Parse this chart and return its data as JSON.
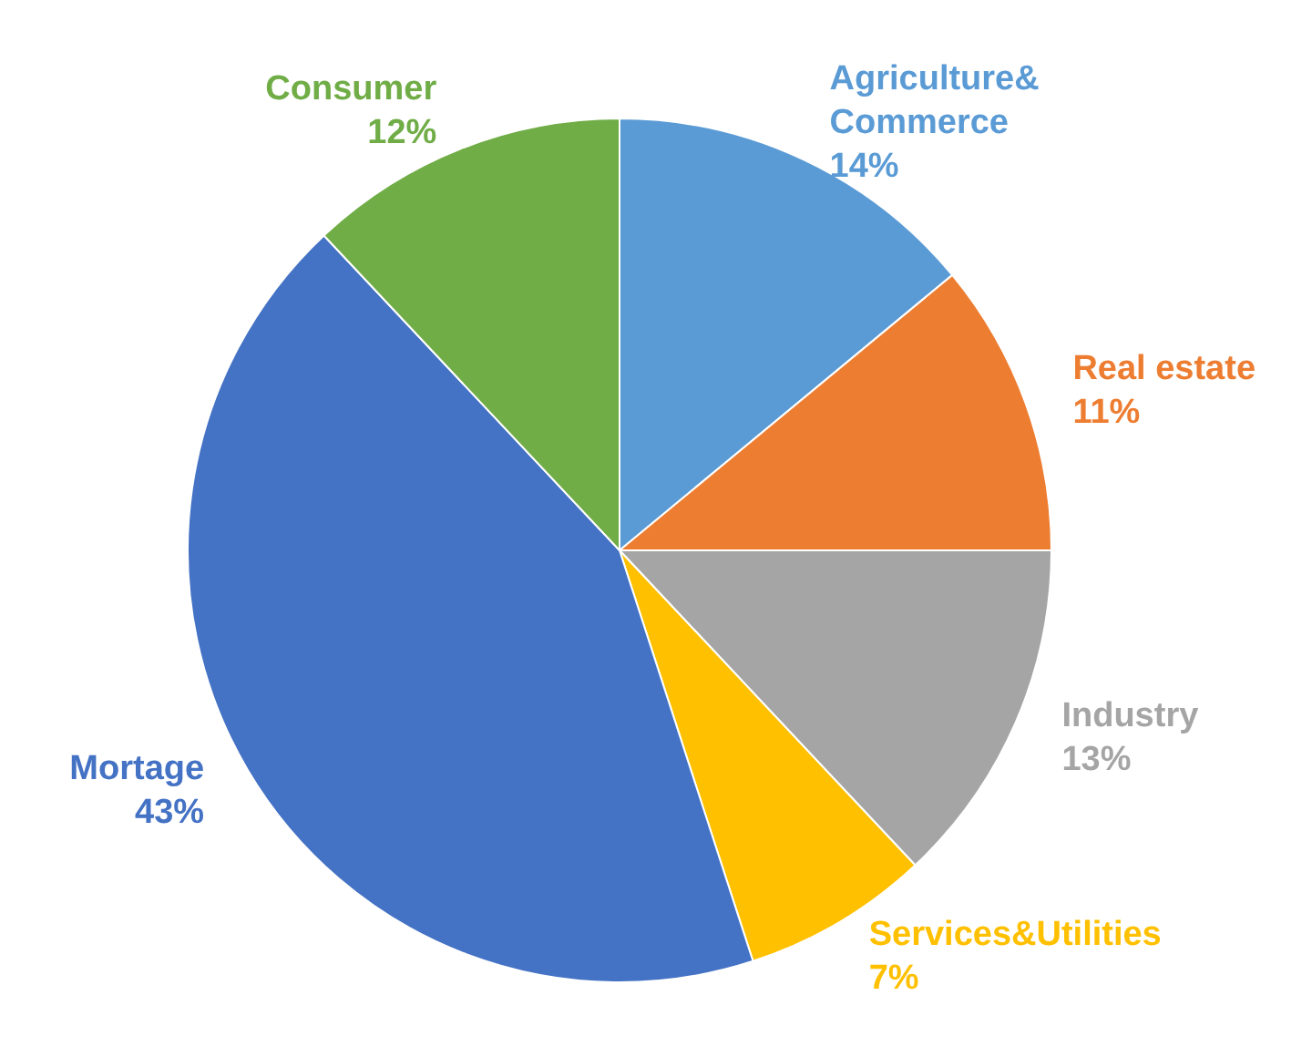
{
  "chart_data": {
    "type": "pie",
    "categories": [
      "Agriculture&Commerce",
      "Real estate",
      "Industry",
      "Services&Utilities",
      "Mortage",
      "Consumer"
    ],
    "values": [
      14,
      11,
      13,
      7,
      43,
      12
    ],
    "colors": [
      "#5b9bd5",
      "#ed7d31",
      "#a5a5a5",
      "#ffc000",
      "#4472c4",
      "#70ad47"
    ],
    "value_labels": [
      "14%",
      "11%",
      "13%",
      "7%",
      "43%",
      "12%"
    ],
    "legend": false
  }
}
